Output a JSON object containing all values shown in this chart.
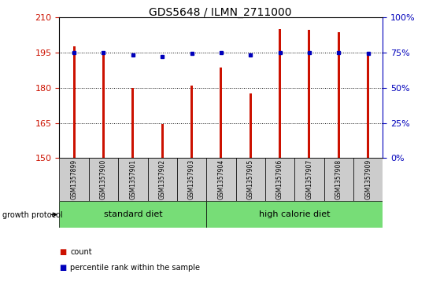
{
  "title": "GDS5648 / ILMN_2711000",
  "samples": [
    "GSM1357899",
    "GSM1357900",
    "GSM1357901",
    "GSM1357902",
    "GSM1357903",
    "GSM1357904",
    "GSM1357905",
    "GSM1357906",
    "GSM1357907",
    "GSM1357908",
    "GSM1357909"
  ],
  "counts": [
    197.5,
    195.5,
    180.0,
    164.5,
    181.0,
    188.5,
    177.5,
    205.0,
    204.5,
    203.5,
    194.5
  ],
  "percentile_ranks": [
    75,
    75,
    73,
    72,
    74,
    75,
    73,
    75,
    75,
    75,
    74
  ],
  "ylim_left": [
    150,
    210
  ],
  "ylim_right": [
    0,
    100
  ],
  "yticks_left": [
    150,
    165,
    180,
    195,
    210
  ],
  "yticks_right": [
    0,
    25,
    50,
    75,
    100
  ],
  "bar_color": "#cc1100",
  "dot_color": "#0000bb",
  "grid_color": "#000000",
  "standard_diet_count": 5,
  "high_calorie_diet_count": 6,
  "label_standard": "standard diet",
  "label_high_calorie": "high calorie diet",
  "protocol_label": "growth protocol",
  "legend_count": "count",
  "legend_percentile": "percentile rank within the sample",
  "sample_box_color": "#cccccc",
  "group_box_color": "#77dd77",
  "bar_width": 0.08
}
